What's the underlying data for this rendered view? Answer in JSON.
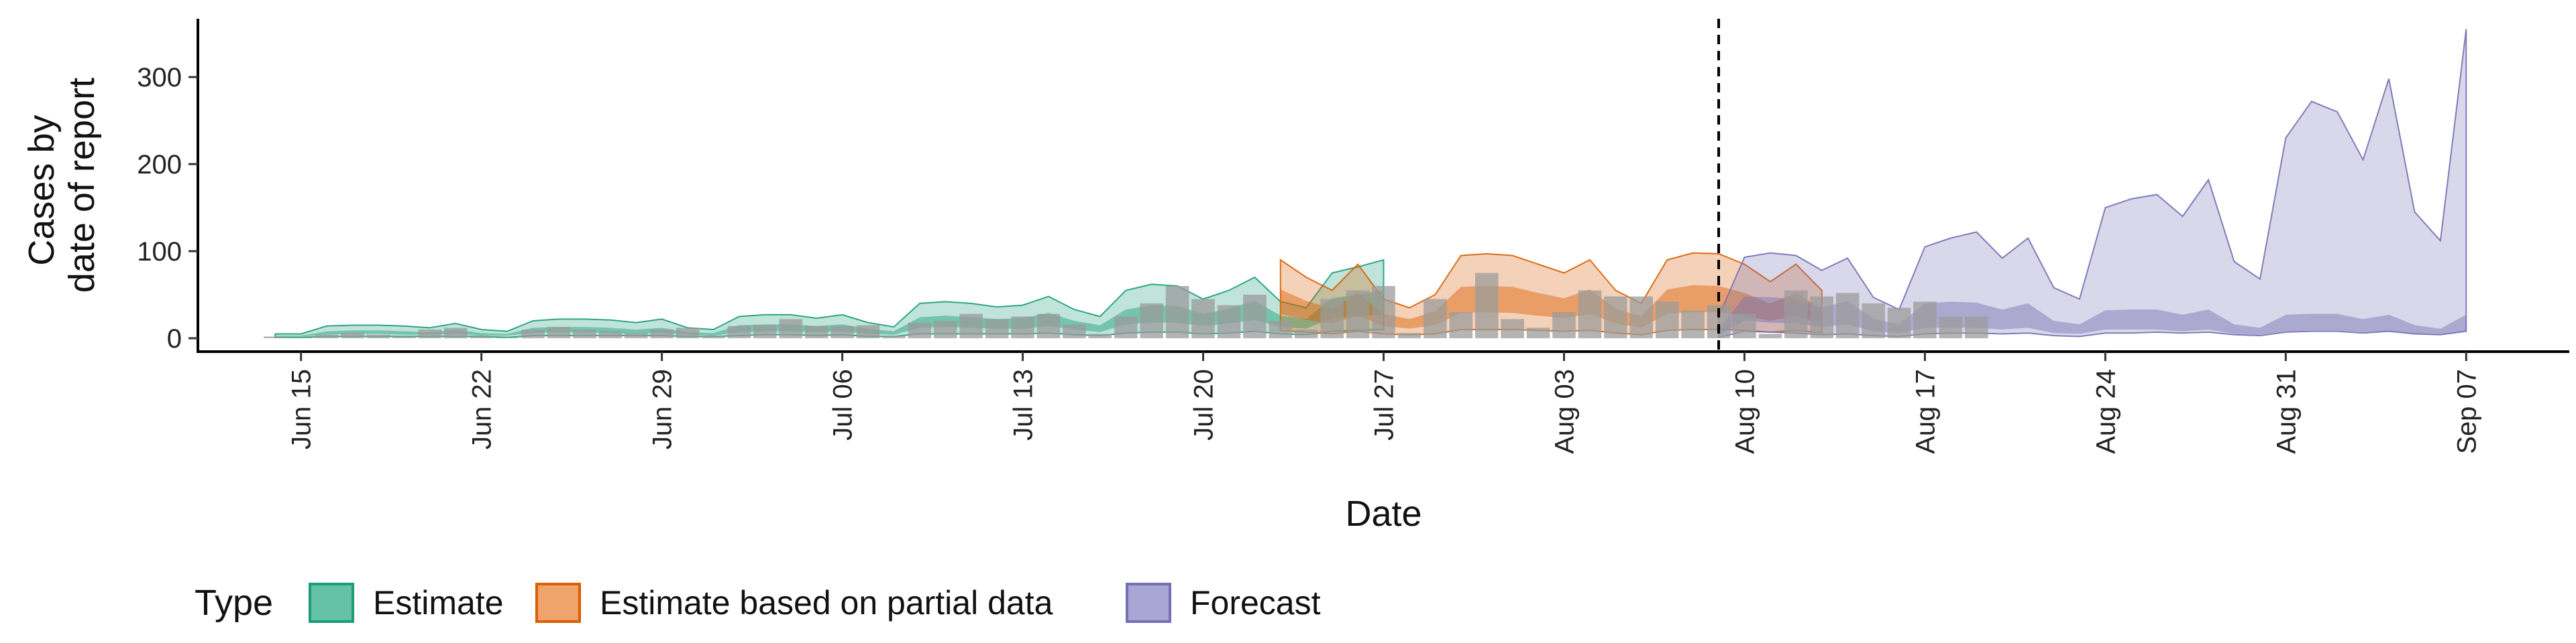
{
  "chart_data": {
    "type": "area",
    "xlabel": "Date",
    "ylabel": [
      "Cases by",
      "date of report"
    ],
    "ylim": [
      0,
      370
    ],
    "yticks": [
      0,
      100,
      200,
      300
    ],
    "xlim": [
      "2020-06-11",
      "2020-09-11"
    ],
    "xticks": [
      {
        "date": "2020-06-15",
        "label": "Jun 15"
      },
      {
        "date": "2020-06-22",
        "label": "Jun 22"
      },
      {
        "date": "2020-06-29",
        "label": "Jun 29"
      },
      {
        "date": "2020-07-06",
        "label": "Jul 06"
      },
      {
        "date": "2020-07-13",
        "label": "Jul 13"
      },
      {
        "date": "2020-07-20",
        "label": "Jul 20"
      },
      {
        "date": "2020-07-27",
        "label": "Jul 27"
      },
      {
        "date": "2020-08-03",
        "label": "Aug 03"
      },
      {
        "date": "2020-08-10",
        "label": "Aug 10"
      },
      {
        "date": "2020-08-17",
        "label": "Aug 17"
      },
      {
        "date": "2020-08-24",
        "label": "Aug 24"
      },
      {
        "date": "2020-08-31",
        "label": "Aug 31"
      },
      {
        "date": "2020-09-07",
        "label": "Sep 07"
      }
    ],
    "vline_date": "2020-08-09",
    "grid": false,
    "legend": {
      "title": "Type",
      "placement": "bottom-left",
      "entries": [
        {
          "label": "Estimate",
          "fill": "#66C2A5",
          "stroke": "#1B9E77"
        },
        {
          "label": "Estimate based on partial data",
          "fill": "#F0A36A",
          "stroke": "#D95F02"
        },
        {
          "label": "Forecast",
          "fill": "#A9A6D6",
          "stroke": "#7570B3"
        }
      ]
    },
    "series": [
      {
        "name": "Estimate",
        "color": "#1B9E77",
        "start": "2020-06-14",
        "outer_upper": [
          5,
          5,
          14,
          15,
          15,
          14,
          12,
          17,
          10,
          8,
          20,
          22,
          22,
          21,
          18,
          22,
          12,
          10,
          25,
          27,
          27,
          23,
          27,
          18,
          13,
          40,
          42,
          40,
          36,
          38,
          48,
          33,
          25,
          55,
          62,
          60,
          45,
          55,
          70,
          42,
          35,
          75,
          82,
          90
        ],
        "outer_lower": [
          1,
          1,
          2,
          2,
          2,
          2,
          2,
          2,
          2,
          1,
          3,
          3,
          3,
          3,
          3,
          3,
          2,
          2,
          3,
          4,
          4,
          3,
          4,
          2,
          2,
          5,
          5,
          5,
          5,
          5,
          6,
          4,
          3,
          6,
          7,
          7,
          5,
          6,
          8,
          5,
          4,
          8,
          9,
          10
        ],
        "inner_upper": [
          3,
          3,
          8,
          9,
          9,
          8,
          7,
          10,
          6,
          5,
          12,
          13,
          13,
          12,
          10,
          12,
          7,
          6,
          15,
          16,
          16,
          14,
          16,
          11,
          8,
          24,
          26,
          24,
          22,
          23,
          29,
          20,
          15,
          33,
          38,
          37,
          28,
          34,
          43,
          26,
          22,
          46,
          50,
          55
        ],
        "inner_lower": [
          2,
          2,
          4,
          5,
          5,
          4,
          4,
          5,
          3,
          3,
          6,
          7,
          7,
          6,
          5,
          6,
          4,
          3,
          7,
          8,
          8,
          7,
          8,
          5,
          4,
          12,
          13,
          12,
          11,
          11,
          14,
          10,
          7,
          16,
          18,
          18,
          14,
          17,
          21,
          13,
          11,
          23,
          25,
          27
        ]
      },
      {
        "name": "Estimate based on partial data",
        "color": "#D95F02",
        "start": "2020-07-23",
        "outer_upper": [
          90,
          70,
          55,
          85,
          45,
          35,
          50,
          95,
          97,
          95,
          85,
          75,
          90,
          55,
          40,
          90,
          98,
          97,
          85,
          65,
          85,
          55
        ],
        "outer_lower": [
          9,
          7,
          5,
          8,
          5,
          4,
          5,
          10,
          10,
          10,
          9,
          8,
          9,
          6,
          4,
          9,
          10,
          10,
          9,
          7,
          9,
          6
        ],
        "inner_upper": [
          56,
          43,
          34,
          52,
          28,
          22,
          31,
          59,
          60,
          59,
          52,
          46,
          56,
          34,
          25,
          56,
          61,
          60,
          52,
          40,
          52,
          34
        ],
        "inner_lower": [
          28,
          21,
          17,
          26,
          14,
          11,
          15,
          29,
          30,
          29,
          26,
          23,
          28,
          17,
          12,
          28,
          30,
          30,
          26,
          20,
          26,
          17
        ]
      },
      {
        "name": "Forecast",
        "color": "#7570B3",
        "start": "2020-08-09",
        "outer_upper": [
          25,
          93,
          98,
          95,
          78,
          92,
          47,
          33,
          105,
          115,
          122,
          92,
          115,
          58,
          45,
          150,
          160,
          165,
          140,
          182,
          88,
          68,
          230,
          272,
          260,
          205,
          298,
          145,
          112,
          355
        ],
        "outer_lower": [
          1,
          8,
          7,
          6,
          4,
          5,
          3,
          2,
          5,
          6,
          6,
          5,
          6,
          3,
          2,
          6,
          6,
          7,
          6,
          7,
          4,
          3,
          7,
          8,
          8,
          6,
          8,
          5,
          4,
          8
        ],
        "inner_upper": [
          10,
          48,
          47,
          45,
          35,
          43,
          22,
          16,
          40,
          42,
          41,
          33,
          40,
          20,
          16,
          32,
          33,
          33,
          27,
          33,
          16,
          12,
          27,
          28,
          28,
          22,
          27,
          15,
          11,
          27
        ],
        "inner_lower": [
          3,
          20,
          18,
          17,
          13,
          16,
          8,
          6,
          12,
          12,
          12,
          10,
          12,
          6,
          5,
          10,
          10,
          10,
          8,
          10,
          5,
          4,
          8,
          9,
          9,
          7,
          8,
          5,
          4,
          8
        ]
      }
    ],
    "reported": {
      "start": "2020-06-14",
      "values": [
        2,
        1,
        4,
        6,
        4,
        2,
        10,
        12,
        2,
        1,
        10,
        13,
        10,
        8,
        6,
        10,
        12,
        3,
        14,
        15,
        22,
        14,
        14,
        15,
        3,
        18,
        20,
        28,
        22,
        25,
        28,
        16,
        5,
        25,
        40,
        60,
        45,
        38,
        50,
        20,
        10,
        45,
        55,
        60,
        6,
        45,
        30,
        75,
        22,
        12,
        30,
        55,
        48,
        48,
        42,
        32,
        38,
        28,
        5,
        55,
        48,
        52,
        40,
        35,
        42,
        25,
        25
      ]
    }
  }
}
